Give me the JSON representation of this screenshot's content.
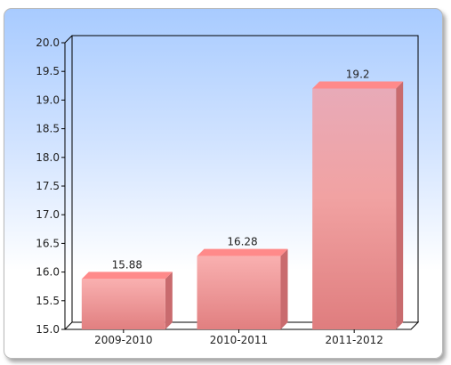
{
  "chart_data": {
    "type": "bar",
    "title": "",
    "xlabel": "",
    "ylabel": "",
    "categories": [
      "2009-2010",
      "2010-2011",
      "2011-2012"
    ],
    "values": [
      15.88,
      16.28,
      19.2
    ],
    "value_labels": [
      "15.88",
      "16.28",
      "19.2"
    ],
    "ylim": [
      15.0,
      20.0
    ],
    "yticks": [
      "15.0",
      "15.5",
      "16.0",
      "16.5",
      "17.0",
      "17.5",
      "18.0",
      "18.5",
      "19.0",
      "19.5",
      "20.0"
    ],
    "grid": false,
    "legend": "none",
    "style": "3d",
    "colors": {
      "bar_top": "#f7a9a9",
      "bar_bottom": "#e07f80",
      "bar_third_top": "#e9aab8",
      "bar_side": "#c96b6e",
      "bar_cap": "#ff8a8a",
      "axis": "#000000"
    }
  }
}
